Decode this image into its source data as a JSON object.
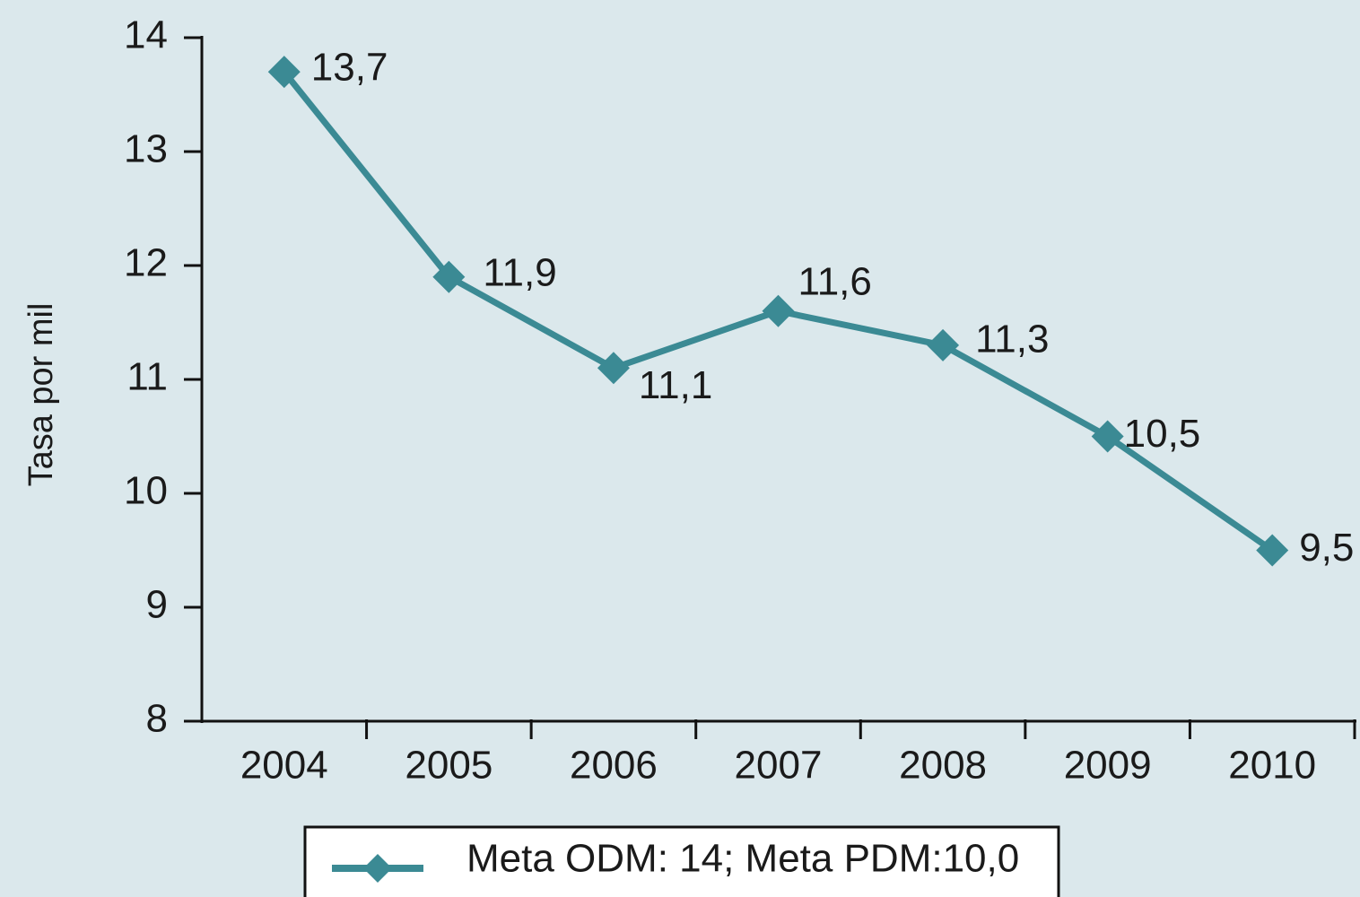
{
  "chart_data": {
    "type": "line",
    "y_label": "Tasa por mil",
    "categories": [
      "2004",
      "2005",
      "2006",
      "2007",
      "2008",
      "2009",
      "2010"
    ],
    "series": [
      {
        "name": "Meta ODM: 14; Meta PDM:10,0",
        "color": "#3b8a94",
        "values": [
          13.7,
          11.9,
          11.1,
          11.6,
          11.3,
          10.5,
          9.5
        ],
        "value_labels": [
          "13,7",
          "11,9",
          "11,1",
          "11,6",
          "11,3",
          "10,5",
          "9,5"
        ]
      }
    ],
    "ylim": [
      8,
      14
    ],
    "yticks": [
      8,
      9,
      10,
      11,
      12,
      13,
      14
    ],
    "grid": false,
    "legend": "bottom"
  }
}
